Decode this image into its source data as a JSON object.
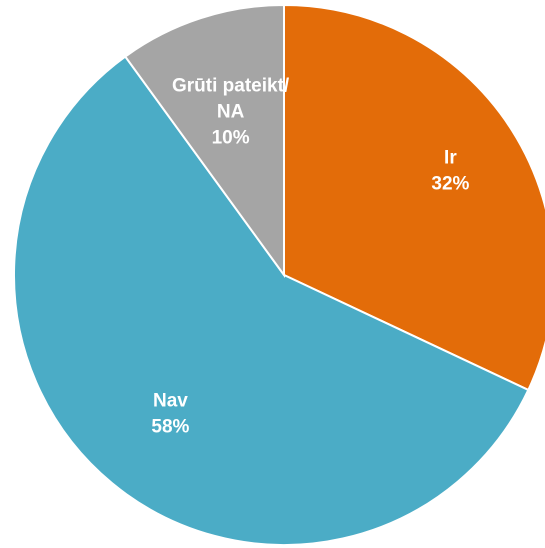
{
  "chart_data": {
    "type": "pie",
    "title": "",
    "slices": [
      {
        "name": "Ir",
        "value": 32,
        "value_label": "32%",
        "color": "#E36C09"
      },
      {
        "name": "Nav",
        "value": 58,
        "value_label": "58%",
        "color": "#4BACC6"
      },
      {
        "name": "Grūti pateikt/ NA",
        "name_lines": [
          "Grūti pateikt/",
          "NA"
        ],
        "value": 10,
        "value_label": "10%",
        "color": "#A5A5A5"
      }
    ],
    "start_angle_deg": 0,
    "direction": "clockwise",
    "legend": "none",
    "data_labels": "inside"
  }
}
